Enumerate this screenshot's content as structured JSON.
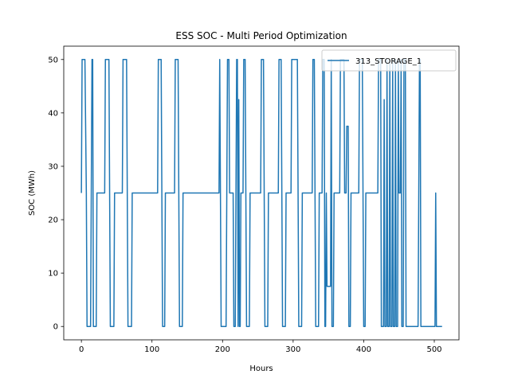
{
  "chart_data": {
    "type": "line",
    "title": "ESS SOC -  Multi Period Optimization",
    "xlabel": "Hours",
    "ylabel": "SOC (MWh)",
    "xlim": [
      -25,
      535
    ],
    "ylim": [
      -2.5,
      52.5
    ],
    "xticks": [
      0,
      100,
      200,
      300,
      400,
      500
    ],
    "yticks": [
      0,
      10,
      20,
      30,
      40,
      50
    ],
    "legend_position": "top-right",
    "grid": false,
    "series": [
      {
        "name": "313_STORAGE_1",
        "color": "#1f77b4",
        "points": [
          [
            0,
            25
          ],
          [
            1,
            50
          ],
          [
            5,
            50
          ],
          [
            7,
            25
          ],
          [
            8,
            0
          ],
          [
            13,
            0
          ],
          [
            15,
            50
          ],
          [
            16,
            50
          ],
          [
            17,
            0
          ],
          [
            21,
            0
          ],
          [
            22,
            25
          ],
          [
            33,
            25
          ],
          [
            34,
            50
          ],
          [
            39,
            50
          ],
          [
            40,
            25
          ],
          [
            41,
            0
          ],
          [
            46,
            0
          ],
          [
            47,
            25
          ],
          [
            58,
            25
          ],
          [
            59,
            50
          ],
          [
            64,
            50
          ],
          [
            65,
            25
          ],
          [
            66,
            0
          ],
          [
            71,
            0
          ],
          [
            72,
            25
          ],
          [
            108,
            25
          ],
          [
            109,
            50
          ],
          [
            113,
            50
          ],
          [
            114,
            25
          ],
          [
            115,
            0
          ],
          [
            118,
            0
          ],
          [
            119,
            25
          ],
          [
            132,
            25
          ],
          [
            133,
            50
          ],
          [
            137,
            50
          ],
          [
            138,
            25
          ],
          [
            139,
            0
          ],
          [
            143,
            0
          ],
          [
            144,
            25
          ],
          [
            195,
            25
          ],
          [
            196,
            50
          ],
          [
            197,
            25
          ],
          [
            198,
            0
          ],
          [
            205,
            0
          ],
          [
            206,
            25
          ],
          [
            207,
            50
          ],
          [
            209,
            50
          ],
          [
            210,
            25
          ],
          [
            215,
            25
          ],
          [
            216,
            0
          ],
          [
            218,
            0
          ],
          [
            219,
            25
          ],
          [
            220,
            50
          ],
          [
            221,
            50
          ],
          [
            222,
            0
          ],
          [
            223,
            42.5
          ],
          [
            224,
            0
          ],
          [
            225,
            0
          ],
          [
            226,
            25
          ],
          [
            229,
            25
          ],
          [
            230,
            50
          ],
          [
            232,
            50
          ],
          [
            233,
            25
          ],
          [
            234,
            0
          ],
          [
            238,
            0
          ],
          [
            239,
            25
          ],
          [
            254,
            25
          ],
          [
            255,
            50
          ],
          [
            258,
            50
          ],
          [
            259,
            25
          ],
          [
            260,
            0
          ],
          [
            264,
            0
          ],
          [
            265,
            25
          ],
          [
            279,
            25
          ],
          [
            280,
            50
          ],
          [
            283,
            50
          ],
          [
            284,
            25
          ],
          [
            285,
            0
          ],
          [
            289,
            0
          ],
          [
            290,
            25
          ],
          [
            297,
            25
          ],
          [
            298,
            50
          ],
          [
            306,
            50
          ],
          [
            307,
            25
          ],
          [
            308,
            0
          ],
          [
            312,
            0
          ],
          [
            313,
            25
          ],
          [
            327,
            25
          ],
          [
            328,
            50
          ],
          [
            330,
            50
          ],
          [
            331,
            25
          ],
          [
            332,
            0
          ],
          [
            336,
            0
          ],
          [
            337,
            25
          ],
          [
            341,
            25
          ],
          [
            342,
            50
          ],
          [
            344,
            50
          ],
          [
            345,
            0
          ],
          [
            346,
            0
          ],
          [
            347,
            25
          ],
          [
            348,
            7.5
          ],
          [
            353,
            7.5
          ],
          [
            354,
            50
          ],
          [
            355,
            0
          ],
          [
            357,
            0
          ],
          [
            358,
            25
          ],
          [
            366,
            25
          ],
          [
            367,
            50
          ],
          [
            372,
            50
          ],
          [
            373,
            25
          ],
          [
            375,
            25
          ],
          [
            376,
            37.5
          ],
          [
            378,
            37.5
          ],
          [
            379,
            0
          ],
          [
            381,
            0
          ],
          [
            382,
            25
          ],
          [
            393,
            25
          ],
          [
            394,
            50
          ],
          [
            398,
            50
          ],
          [
            399,
            25
          ],
          [
            400,
            0
          ],
          [
            402,
            0
          ],
          [
            403,
            25
          ],
          [
            420,
            25
          ],
          [
            421,
            50
          ],
          [
            424,
            50
          ],
          [
            425,
            0
          ],
          [
            428,
            0
          ],
          [
            429,
            42.5
          ],
          [
            430,
            0
          ],
          [
            432,
            0
          ],
          [
            433,
            50
          ],
          [
            434,
            0
          ],
          [
            436,
            0
          ],
          [
            437,
            50
          ],
          [
            438,
            0
          ],
          [
            440,
            0
          ],
          [
            441,
            50
          ],
          [
            442,
            0
          ],
          [
            444,
            0
          ],
          [
            445,
            50
          ],
          [
            446,
            0
          ],
          [
            448,
            0
          ],
          [
            449,
            50
          ],
          [
            450,
            25
          ],
          [
            452,
            25
          ],
          [
            453,
            50
          ],
          [
            454,
            0
          ],
          [
            456,
            0
          ],
          [
            457,
            50
          ],
          [
            459,
            50
          ],
          [
            460,
            0
          ],
          [
            477,
            0
          ],
          [
            478,
            25
          ],
          [
            479,
            50
          ],
          [
            480,
            50
          ],
          [
            481,
            0
          ],
          [
            501,
            0
          ],
          [
            502,
            25
          ],
          [
            503,
            0
          ],
          [
            511,
            0
          ]
        ]
      }
    ]
  }
}
